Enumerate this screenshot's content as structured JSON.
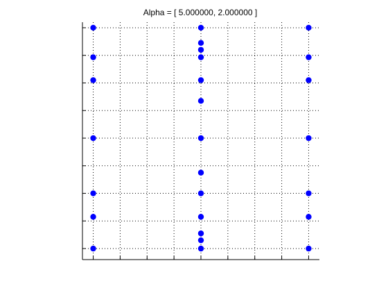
{
  "chart_data": {
    "type": "scatter",
    "title": "Alpha = [ 5.000000, 2.000000 ]",
    "xlabel": "",
    "ylabel": "",
    "xlim": [
      0,
      8.8
    ],
    "ylim": [
      0,
      8.6
    ],
    "xticks": [
      0.4,
      1.4,
      2.4,
      3.4,
      4.4,
      5.4,
      6.4,
      7.4,
      8.4
    ],
    "yticks": [
      0.4,
      1.4,
      2.4,
      3.4,
      4.4,
      5.4,
      6.4,
      7.4,
      8.4
    ],
    "grid": true,
    "marker_color": "#0000ff",
    "series": [
      {
        "x": [
          0.4,
          0.4,
          0.4,
          0.4,
          0.4,
          0.4,
          0.4,
          4.4,
          4.4,
          4.4,
          4.4,
          4.4,
          4.4,
          4.4,
          4.4,
          4.4,
          4.4,
          4.4,
          4.4,
          4.4,
          8.4,
          8.4,
          8.4,
          8.4,
          8.4,
          8.4,
          8.4
        ],
        "y": [
          8.4,
          7.33,
          6.5,
          4.4,
          2.4,
          1.55,
          0.4,
          8.4,
          7.85,
          7.6,
          7.33,
          6.5,
          5.75,
          4.4,
          3.15,
          2.4,
          1.55,
          0.95,
          0.7,
          0.4,
          8.4,
          7.33,
          6.5,
          4.4,
          2.4,
          1.55,
          0.4
        ]
      }
    ]
  }
}
